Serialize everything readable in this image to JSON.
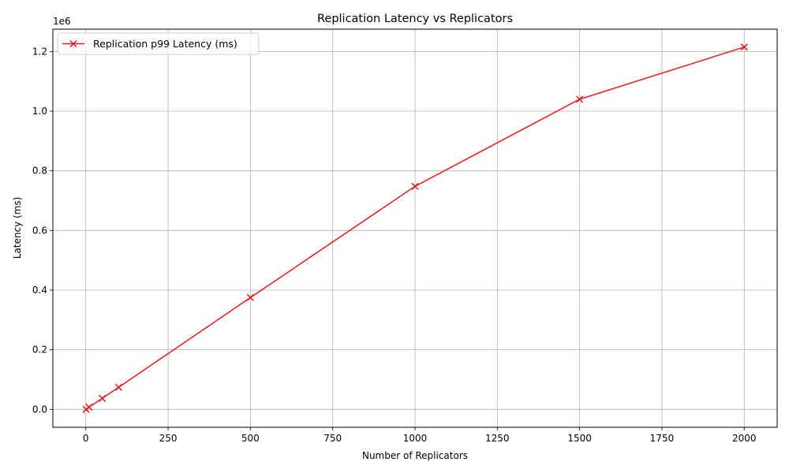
{
  "chart_data": {
    "type": "line",
    "title": "Replication Latency vs Replicators",
    "xlabel": "Number of Replicators",
    "ylabel": "Latency (ms)",
    "y_offset_text": "1e6",
    "xlim": [
      -100,
      2100
    ],
    "ylim": [
      -60000,
      1275000
    ],
    "x_ticks": [
      0,
      250,
      500,
      750,
      1000,
      1250,
      1500,
      1750,
      2000
    ],
    "x_tick_labels": [
      "0",
      "250",
      "500",
      "750",
      "1000",
      "1250",
      "1500",
      "1750",
      "2000"
    ],
    "y_ticks": [
      0,
      200000,
      400000,
      600000,
      800000,
      1000000,
      1200000
    ],
    "y_tick_labels": [
      "0.0",
      "0.2",
      "0.4",
      "0.6",
      "0.8",
      "1.0",
      "1.2"
    ],
    "grid": true,
    "legend_position": "top-left",
    "series": [
      {
        "name": "Replication p99 Latency (ms)",
        "color": "#e41a1c",
        "marker": "x",
        "x": [
          1,
          10,
          50,
          100,
          500,
          1000,
          1500,
          2000
        ],
        "y": [
          0,
          7500,
          37000,
          74000,
          375000,
          748000,
          1040000,
          1215000
        ]
      }
    ]
  }
}
